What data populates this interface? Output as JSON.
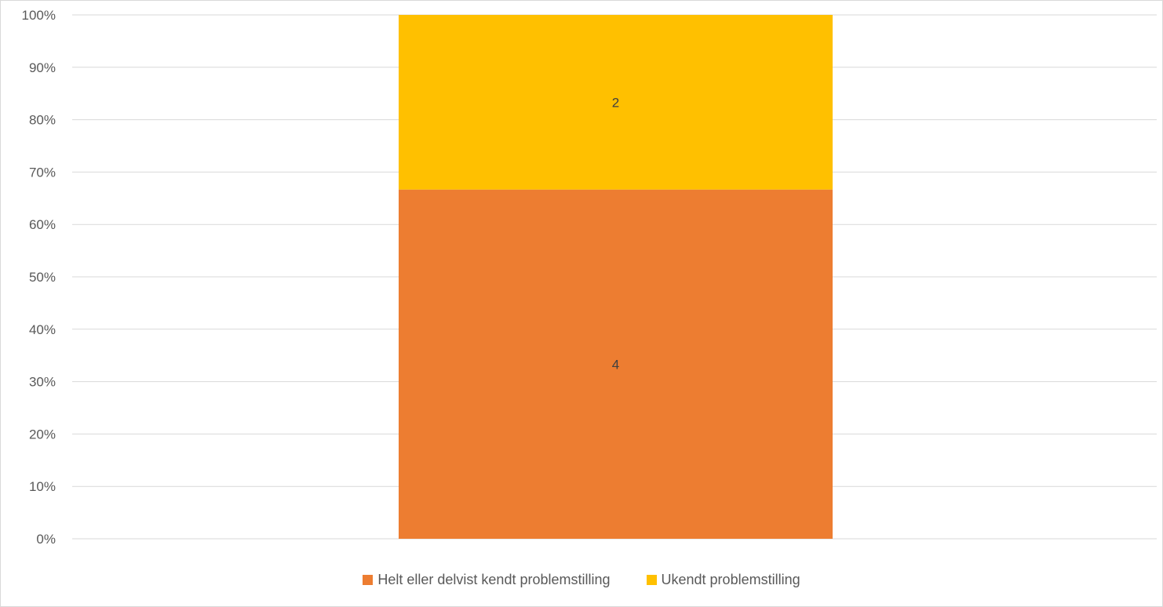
{
  "chart_data": {
    "type": "bar",
    "stacked": true,
    "percent_stacked": true,
    "categories": [
      ""
    ],
    "series": [
      {
        "name": "Helt eller delvist kendt problemstilling",
        "values": [
          4
        ],
        "color": "#ED7D31",
        "label": "4"
      },
      {
        "name": "Ukendt problemstilling",
        "values": [
          2
        ],
        "color": "#FFC000",
        "label": "2"
      }
    ],
    "y_ticks": [
      "0%",
      "10%",
      "20%",
      "30%",
      "40%",
      "50%",
      "60%",
      "70%",
      "80%",
      "90%",
      "100%"
    ],
    "ylim": [
      0,
      100
    ],
    "grid": true,
    "legend_position": "bottom",
    "title": "",
    "xlabel": "",
    "ylabel": ""
  }
}
